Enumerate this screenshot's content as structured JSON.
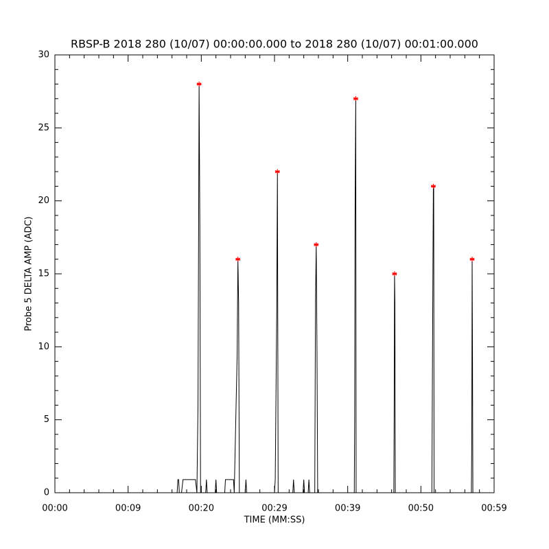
{
  "chart_data": {
    "type": "line",
    "title": "RBSP-B 2018 280 (10/07) 00:00:00.000 to 2018 280 (10/07) 00:01:00.000",
    "xlabel": "TIME (MM:SS)",
    "ylabel": "Probe 5 DELTA AMP (ADC)",
    "xlim": [
      0,
      60
    ],
    "ylim": [
      0,
      30
    ],
    "xticks": [
      {
        "value": 0,
        "label": "00:00"
      },
      {
        "value": 10,
        "label": "00:09"
      },
      {
        "value": 20,
        "label": "00:20"
      },
      {
        "value": 30,
        "label": "00:29"
      },
      {
        "value": 40,
        "label": "00:39"
      },
      {
        "value": 50,
        "label": "00:50"
      },
      {
        "value": 60,
        "label": "00:59"
      }
    ],
    "yticks": [
      0,
      5,
      10,
      15,
      20,
      25,
      30
    ],
    "xminor": 5,
    "yminor": 5,
    "series": [
      {
        "color": "#000000",
        "marker": "none",
        "x": [
          0,
          16.7,
          16.8,
          16.9,
          17.0,
          17.3,
          17.5,
          19.2,
          19.4,
          19.55,
          19.7,
          19.8,
          19.9,
          20.6,
          20.7,
          20.8,
          21.9,
          22.0,
          22.1,
          23.2,
          23.3,
          24.4,
          24.5,
          24.9,
          25.0,
          25.1,
          25.2,
          26.0,
          26.1,
          26.2,
          30.0,
          30.1,
          30.3,
          30.4,
          30.5,
          32.5,
          32.6,
          32.7,
          33.9,
          34.0,
          34.1,
          34.6,
          34.7,
          34.8,
          35.5,
          35.6,
          35.7,
          35.8,
          35.9,
          40.9,
          40.95,
          41.0,
          41.1,
          41.15,
          46.3,
          46.35,
          46.4,
          46.45,
          46.5,
          51.5,
          51.6,
          51.7,
          51.75,
          51.8,
          56.9,
          56.95,
          57.0,
          57.05,
          57.1,
          60
        ],
        "values": [
          0,
          0,
          0.9,
          0.9,
          0,
          0,
          0.9,
          0.9,
          0,
          6,
          28,
          18.5,
          0,
          0,
          0.9,
          0,
          0,
          0.9,
          0,
          0,
          0.9,
          0.9,
          0,
          9.5,
          16,
          13,
          0,
          0,
          0.9,
          0,
          0,
          0.9,
          12,
          22,
          0,
          0,
          0.9,
          0,
          0,
          0.9,
          0,
          0,
          0.9,
          0,
          0,
          13,
          17,
          10,
          0,
          0,
          5,
          18.5,
          27,
          0,
          0,
          5.5,
          15,
          13,
          0,
          0,
          11,
          21,
          21,
          0,
          0,
          3.5,
          16,
          9.5,
          0,
          0
        ]
      },
      {
        "color": "#ff0000",
        "marker": "asterisk",
        "x": [
          19.7,
          25.0,
          30.4,
          35.7,
          41.1,
          46.4,
          51.7,
          57.0
        ],
        "values": [
          28,
          16,
          22,
          17,
          27,
          15,
          21,
          16
        ]
      }
    ]
  }
}
